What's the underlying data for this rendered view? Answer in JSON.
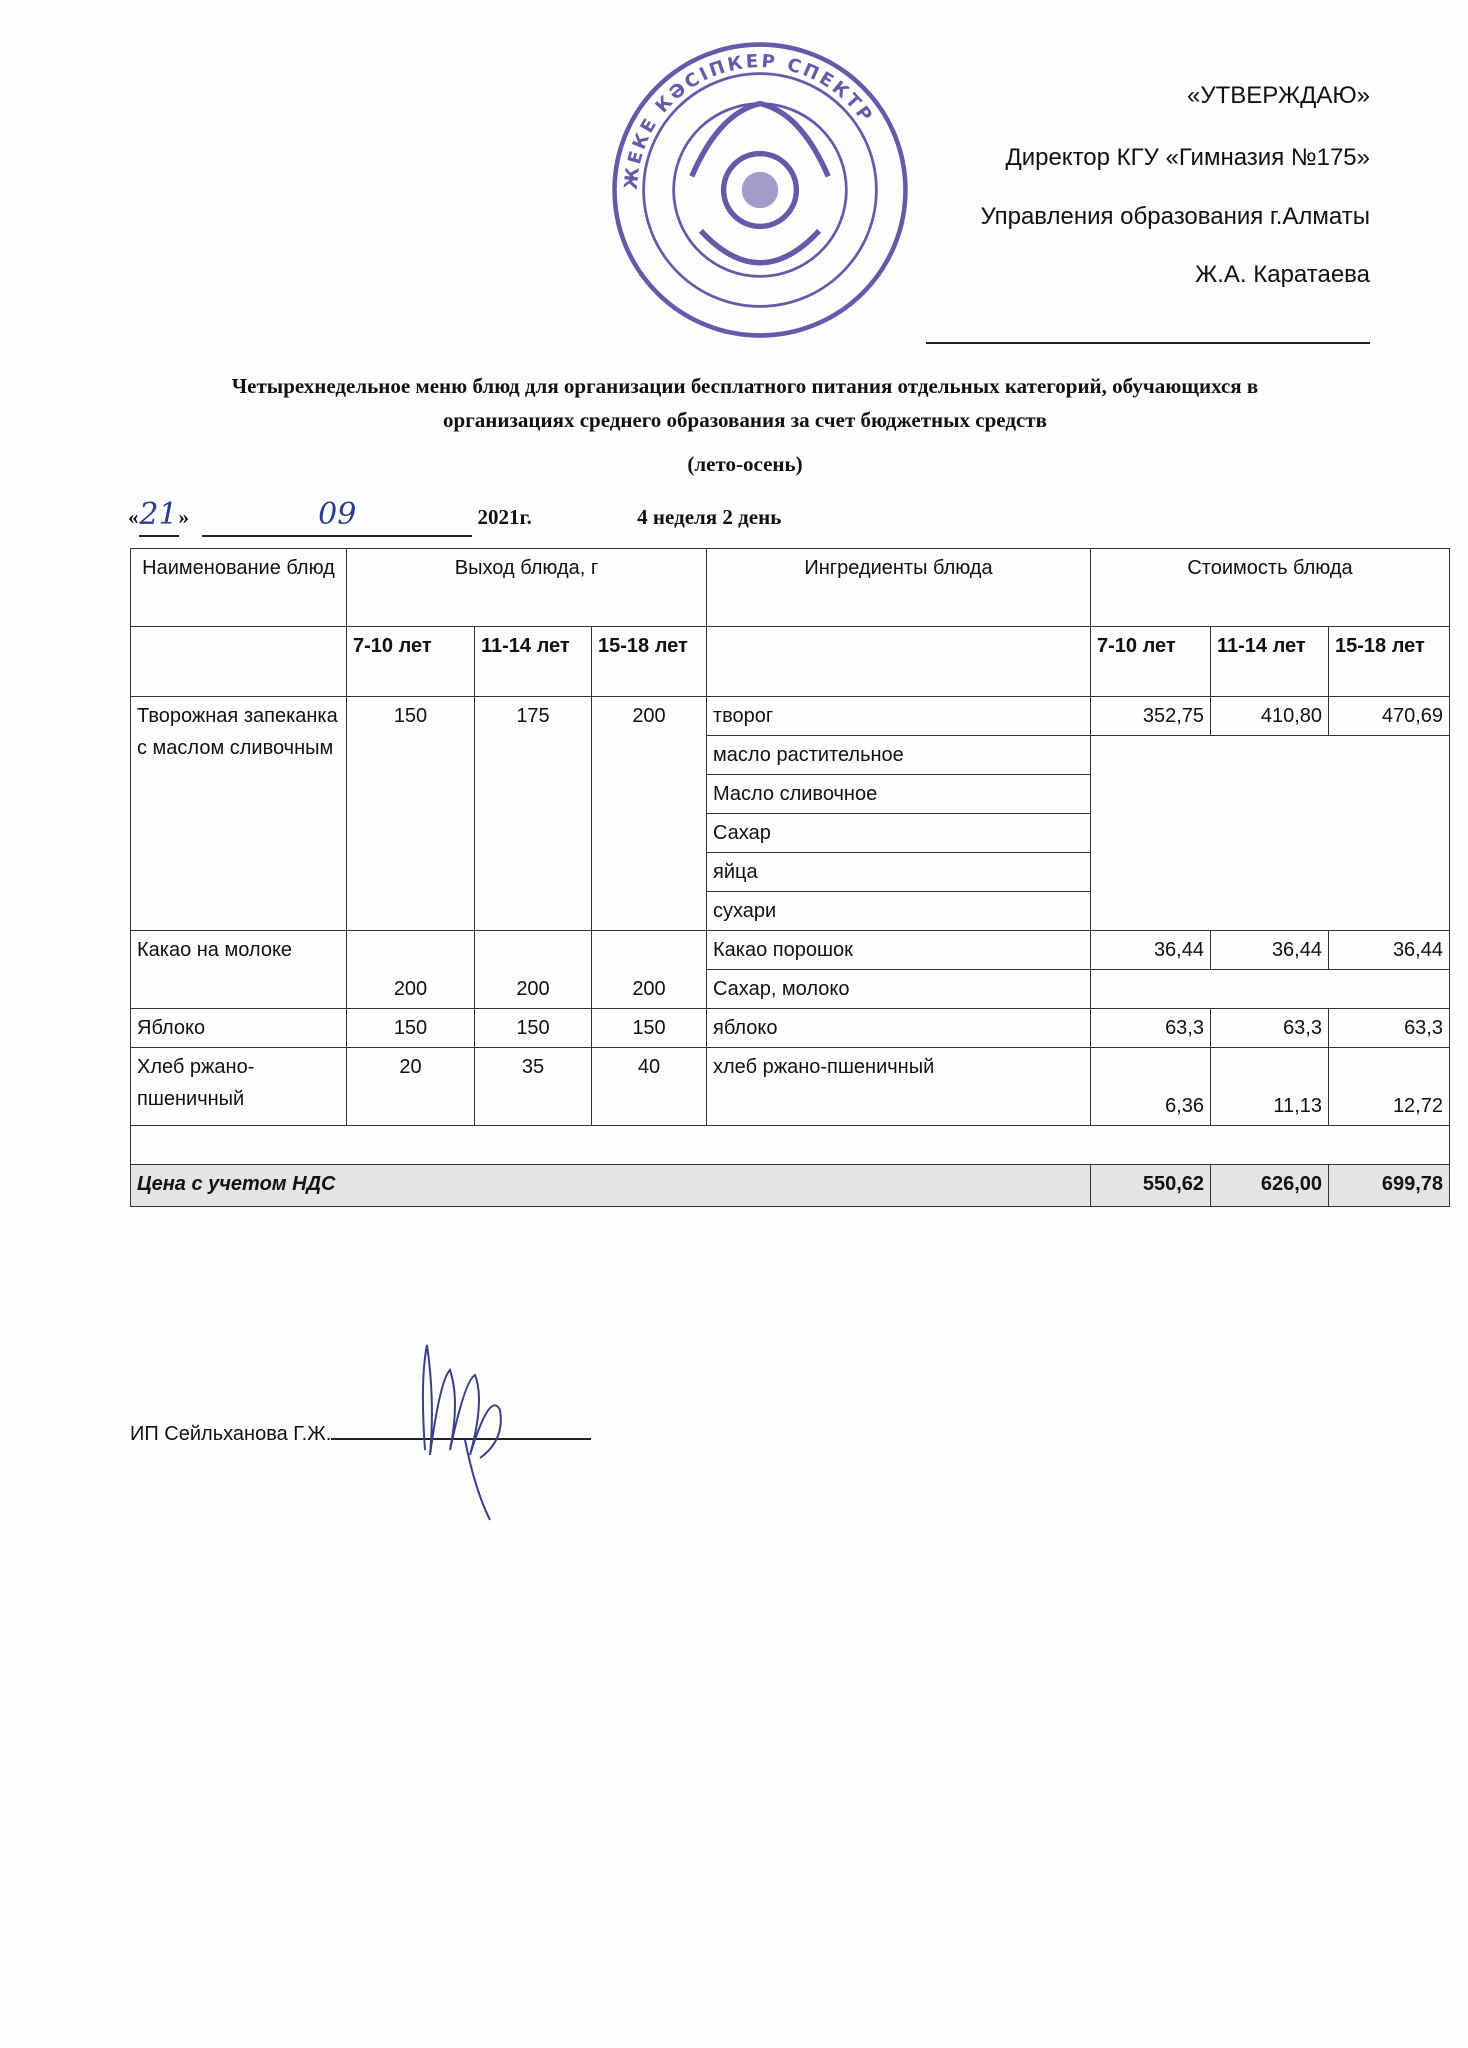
{
  "approval": {
    "approve": "«УТВЕРЖДАЮ»",
    "position": "Директор КГУ «Гимназия №175»",
    "department": "Управления образования г.Алматы",
    "name": "Ж.А. Каратаева"
  },
  "title": {
    "line1": "Четырехнедельное меню блюд для организации бесплатного питания отдельных категорий, обучающихся в",
    "line2": "организациях среднего образования за счет бюджетных средств",
    "season": "(лето-осень)"
  },
  "date": {
    "open_quote": "«",
    "day": "21",
    "close_quote": "»",
    "month": "09",
    "year": "2021г.",
    "week_day": "4 неделя 2 день"
  },
  "table": {
    "headers": {
      "name": "Наименование блюд",
      "yield": "Выход блюда, г",
      "ingredients": "Ингредиенты блюда",
      "cost": "Стоимость блюда"
    },
    "age_groups": {
      "yield": [
        "7-10 лет",
        "11-14 лет",
        "15-18 лет"
      ],
      "cost": [
        "7-10 лет",
        "11-14 лет",
        "15-18 лет"
      ]
    },
    "dishes": [
      {
        "name": "Творожная запеканка с маслом сливочным",
        "yield": [
          "150",
          "175",
          "200"
        ],
        "ingredients": [
          "творог",
          "масло растительное",
          "Масло сливочное",
          "Сахар",
          "яйца",
          "сухари"
        ],
        "cost": [
          "352,75",
          "410,80",
          "470,69"
        ]
      },
      {
        "name": "Какао на молоке",
        "yield": [
          "200",
          "200",
          "200"
        ],
        "ingredients": [
          "Какао порошок",
          "Сахар, молоко"
        ],
        "cost": [
          "36,44",
          "36,44",
          "36,44"
        ]
      },
      {
        "name": "Яблоко",
        "yield": [
          "150",
          "150",
          "150"
        ],
        "ingredients": [
          "яблоко"
        ],
        "cost": [
          "63,3",
          "63,3",
          "63,3"
        ]
      },
      {
        "name": "Хлеб ржано-пшеничный",
        "yield": [
          "20",
          "35",
          "40"
        ],
        "ingredients": [
          "хлеб ржано-пшеничный"
        ],
        "cost": [
          "6,36",
          "11,13",
          "12,72"
        ]
      }
    ],
    "total": {
      "label": "Цена с учетом НДС",
      "values": [
        "550,62",
        "626,00",
        "699,78"
      ]
    }
  },
  "signature": {
    "label": "ИП Сейльханова Г.Ж."
  },
  "stamp": {
    "color": "#4a3f9a",
    "text": "ЖЕКЕ КӘСІПКЕР СПЕКТР"
  }
}
